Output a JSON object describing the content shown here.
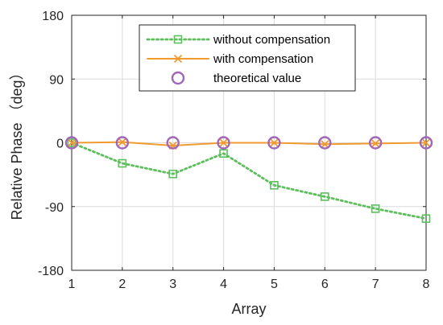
{
  "chart_data": {
    "type": "line",
    "xlabel": "Array",
    "ylabel": "Relative Phase （deg）",
    "x": [
      1,
      2,
      3,
      4,
      5,
      6,
      7,
      8
    ],
    "xlim": [
      1,
      8
    ],
    "ylim": [
      -180,
      180
    ],
    "yticks": [
      -180,
      -90,
      0,
      90,
      180
    ],
    "xticks": [
      1,
      2,
      3,
      4,
      5,
      6,
      7,
      8
    ],
    "grid": true,
    "legend_position": "top-center",
    "series": [
      {
        "name": "without compensation",
        "values": [
          0,
          -29,
          -44,
          -15,
          -60,
          -76,
          -93,
          -107
        ],
        "color": "#5cbf5c",
        "line": "dotted",
        "marker": "square"
      },
      {
        "name": "with compensation",
        "values": [
          0,
          1,
          -4,
          0,
          0,
          -2,
          -1,
          0
        ],
        "color": "#f09a30",
        "line": "solid",
        "marker": "x"
      },
      {
        "name": "theoretical value",
        "values": [
          0,
          0,
          0,
          0,
          0,
          0,
          0,
          0
        ],
        "color": "#a066b8",
        "line": "none",
        "marker": "circle"
      }
    ]
  }
}
